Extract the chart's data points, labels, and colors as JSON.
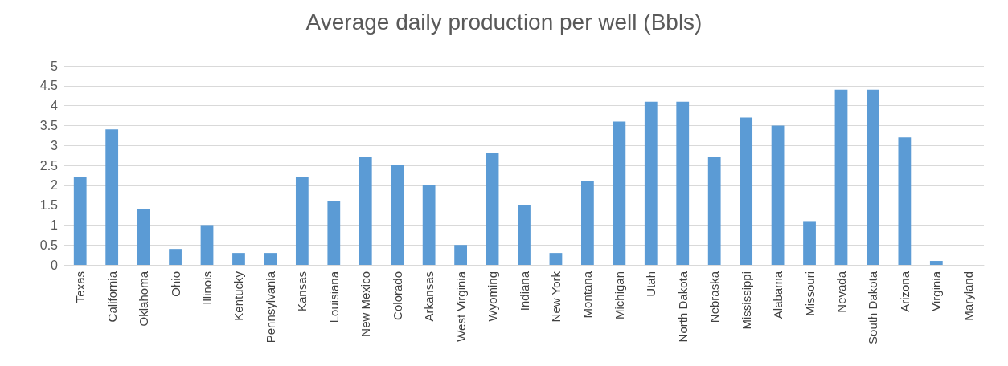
{
  "chart_data": {
    "type": "bar",
    "title": "Average daily production per well (Bbls)",
    "categories": [
      "Texas",
      "California",
      "Oklahoma",
      "Ohio",
      "Illinois",
      "Kentucky",
      "Pennsylvania",
      "Kansas",
      "Louisiana",
      "New Mexico",
      "Colorado",
      "Arkansas",
      "West Virginia",
      "Wyoming",
      "Indiana",
      "New York",
      "Montana",
      "Michigan",
      "Utah",
      "North Dakota",
      "Nebraska",
      "Mississippi",
      "Alabama",
      "Missouri",
      "Nevada",
      "South Dakota",
      "Arizona",
      "Virginia",
      "Maryland"
    ],
    "values": [
      2.2,
      3.4,
      1.4,
      0.4,
      1.0,
      0.3,
      0.3,
      2.2,
      1.6,
      2.7,
      2.5,
      2.0,
      0.5,
      2.8,
      1.5,
      0.3,
      2.1,
      3.6,
      4.1,
      4.1,
      2.7,
      3.7,
      3.5,
      1.1,
      4.4,
      4.4,
      3.2,
      0.1,
      0
    ],
    "color": "#5b9bd5",
    "ylim": [
      0,
      5
    ],
    "yticks": [
      0,
      0.5,
      1,
      1.5,
      2,
      2.5,
      3,
      3.5,
      4,
      4.5,
      5
    ],
    "grid": "y"
  }
}
